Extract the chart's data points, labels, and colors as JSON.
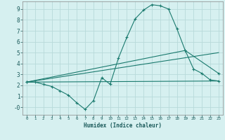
{
  "xlabel": "Humidex (Indice chaleur)",
  "bg_color": "#d6f0f0",
  "grid_color": "#b8dada",
  "line_color": "#1a7a6e",
  "xlim": [
    -0.5,
    23.5
  ],
  "ylim": [
    -0.7,
    9.7
  ],
  "xticks": [
    0,
    1,
    2,
    3,
    4,
    5,
    6,
    7,
    8,
    9,
    10,
    11,
    12,
    13,
    14,
    15,
    16,
    17,
    18,
    19,
    20,
    21,
    22,
    23
  ],
  "yticks": [
    0,
    1,
    2,
    3,
    4,
    5,
    6,
    7,
    8,
    9
  ],
  "ytick_labels": [
    "-0",
    "1",
    "2",
    "3",
    "4",
    "5",
    "6",
    "7",
    "8",
    "9"
  ],
  "line1_x": [
    0,
    1,
    2,
    3,
    4,
    5,
    6,
    7,
    8,
    9,
    10,
    11,
    12,
    13,
    14,
    15,
    16,
    17,
    18,
    19,
    20,
    21,
    22,
    23
  ],
  "line1_y": [
    2.3,
    2.3,
    2.1,
    1.9,
    1.5,
    1.1,
    0.4,
    -0.2,
    0.6,
    2.7,
    2.1,
    4.5,
    6.4,
    8.1,
    8.9,
    9.4,
    9.3,
    9.0,
    7.2,
    5.2,
    3.5,
    3.1,
    2.5,
    2.4
  ],
  "line2_x": [
    0,
    23
  ],
  "line2_y": [
    2.3,
    2.4
  ],
  "line3_x": [
    0,
    23
  ],
  "line3_y": [
    2.3,
    5.0
  ],
  "line4_x": [
    0,
    19,
    23
  ],
  "line4_y": [
    2.3,
    5.2,
    3.1
  ]
}
